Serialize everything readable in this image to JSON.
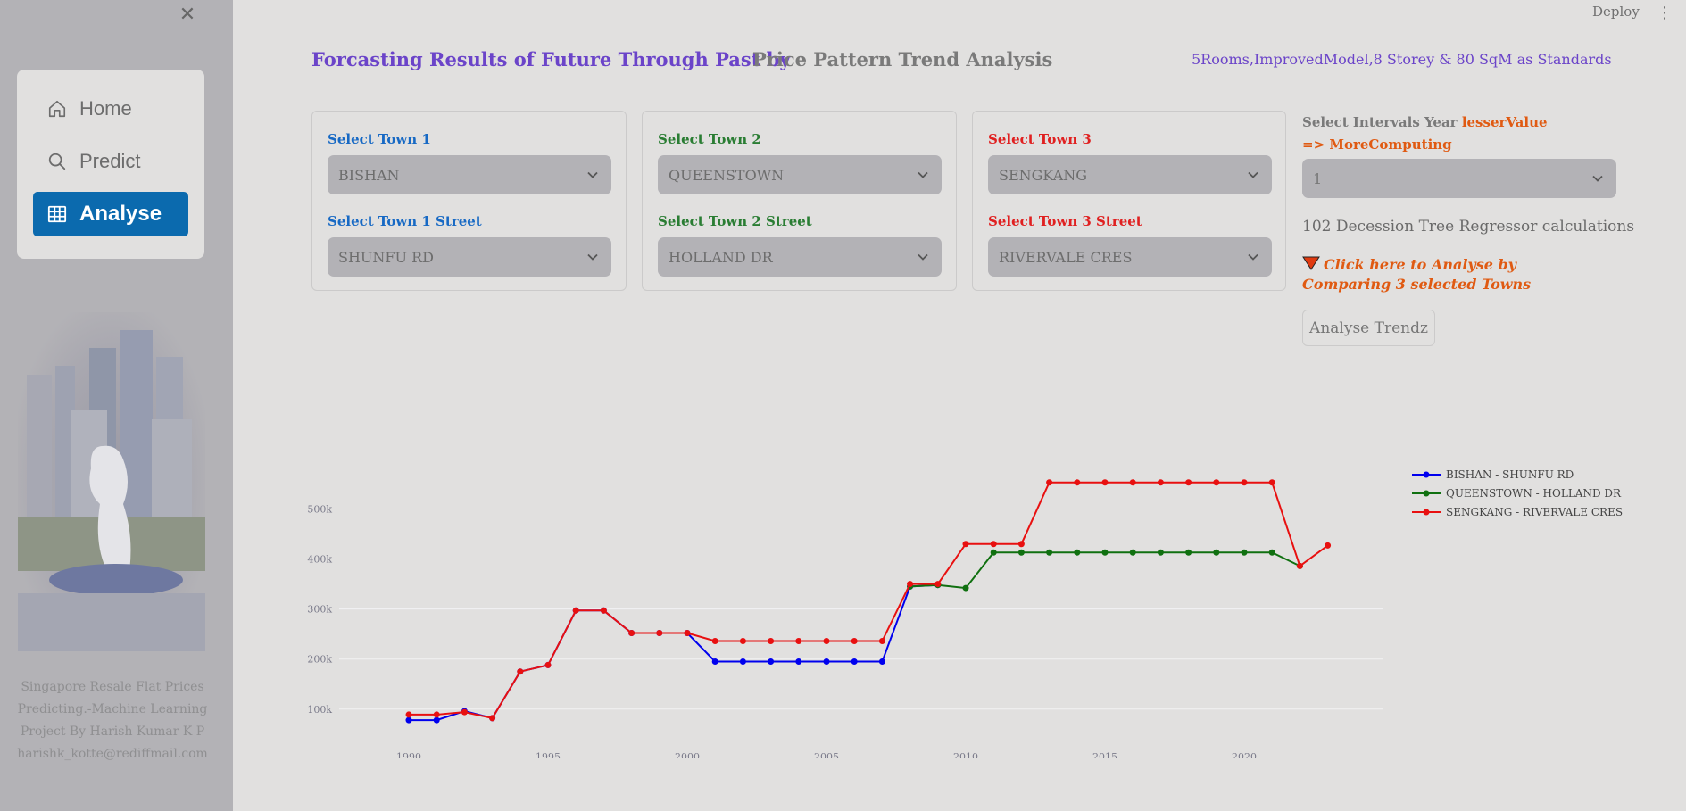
{
  "sidebar": {
    "close_glyph": "✕",
    "nav": [
      {
        "label": "Home",
        "icon": "home-icon"
      },
      {
        "label": "Predict",
        "icon": "search-icon"
      },
      {
        "label": "Analyse",
        "icon": "table-icon",
        "active": true
      }
    ],
    "footer": [
      "Singapore Resale Flat Prices",
      "Predicting.-Machine Learning",
      "Project By Harish Kumar K P",
      "harishk_kotte@rediffmail.com"
    ]
  },
  "header": {
    "deploy_label": "Deploy",
    "menu_glyph": "⋮"
  },
  "titles": {
    "main_a": "Forcasting Results of Future Through Past by",
    "main_b": "Price Pattern Trend Analysis",
    "standards": "5Rooms,ImprovedModel,8 Storey & 80 SqM as Standards"
  },
  "towns": [
    {
      "town_label": "Select Town 1",
      "town_value": "BISHAN",
      "street_label": "Select Town 1 Street",
      "street_value": "SHUNFU RD",
      "color": "#1769c4"
    },
    {
      "town_label": "Select Town 2",
      "town_value": "QUEENSTOWN",
      "street_label": "Select Town 2 Street",
      "street_value": "HOLLAND DR",
      "color": "#2a7d33"
    },
    {
      "town_label": "Select Town 3",
      "town_value": "SENGKANG",
      "street_label": "Select Town 3 Street",
      "street_value": "RIVERVALE CRES",
      "color": "#e02020"
    }
  ],
  "controls": {
    "interval_label": "Select Intervals Year",
    "interval_hint_a": "lesserValue =>",
    "interval_hint_b": "MoreComputing",
    "interval_value": "1",
    "calc_text": "102 Decession Tree Regressor calculations",
    "analyse_link": "Click here to Analyse by Comparing 3 selected Towns",
    "analyse_button": "Analyse Trendz"
  },
  "chart_data": {
    "type": "line",
    "x": [
      1990,
      1991,
      1992,
      1993,
      1994,
      1995,
      1996,
      1997,
      1998,
      1999,
      2000,
      2001,
      2002,
      2003,
      2004,
      2005,
      2006,
      2007,
      2008,
      2009,
      2010,
      2011,
      2012,
      2013,
      2014,
      2015,
      2016,
      2017,
      2018,
      2019,
      2020,
      2021,
      2022,
      2023
    ],
    "xlim": [
      1987.5,
      2025
    ],
    "ylim": [
      55000,
      590000
    ],
    "x_ticks": [
      1990,
      1995,
      2000,
      2005,
      2010,
      2015,
      2020
    ],
    "y_ticks": [
      100000,
      200000,
      300000,
      400000,
      500000
    ],
    "y_tick_labels": [
      "100k",
      "200k",
      "300k",
      "400k",
      "500k"
    ],
    "grid": true,
    "legend_position": "top-right",
    "series": [
      {
        "name": "BISHAN - SHUNFU RD",
        "color": "#0000ee",
        "values": [
          78000,
          78000,
          96000,
          82000,
          175000,
          188000,
          297000,
          297000,
          252000,
          252000,
          252000,
          195000,
          195000,
          195000,
          195000,
          195000,
          195000,
          195000,
          345000,
          348000,
          null,
          null,
          null,
          null,
          null,
          null,
          null,
          null,
          null,
          null,
          null,
          null,
          null,
          null
        ]
      },
      {
        "name": "QUEENSTOWN - HOLLAND DR",
        "color": "#107010",
        "values": [
          null,
          null,
          null,
          null,
          null,
          null,
          null,
          null,
          null,
          null,
          null,
          null,
          null,
          null,
          null,
          null,
          null,
          null,
          345000,
          348000,
          342000,
          413000,
          413000,
          413000,
          413000,
          413000,
          413000,
          413000,
          413000,
          413000,
          413000,
          413000,
          386000,
          null
        ]
      },
      {
        "name": "SENGKANG - RIVERVALE CRES",
        "color": "#e81010",
        "values": [
          89000,
          89000,
          94000,
          82000,
          175000,
          188000,
          297000,
          297000,
          252000,
          252000,
          252000,
          236000,
          236000,
          236000,
          236000,
          236000,
          236000,
          236000,
          350000,
          350000,
          430000,
          430000,
          430000,
          553000,
          553000,
          553000,
          553000,
          553000,
          553000,
          553000,
          553000,
          553000,
          386000,
          427000
        ]
      }
    ]
  }
}
